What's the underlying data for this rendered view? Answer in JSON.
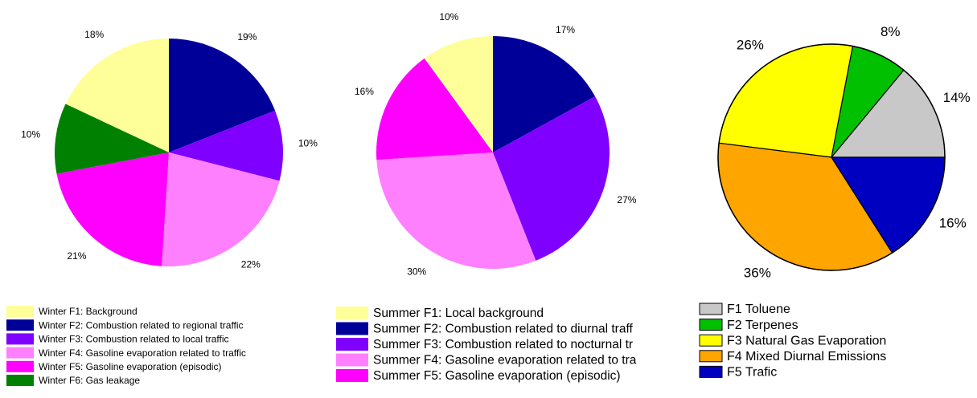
{
  "chart_data": [
    {
      "type": "pie",
      "categories": [
        "Winter F1: Background",
        "Winter F2: Combustion related to regional traffic",
        "Winter F3: Combustion related to local traffic",
        "Winter F4: Gasoline evaporation related to traffic",
        "Winter F5: Gasoline evaporation (episodic)",
        "Winter F6: Gas leakage"
      ],
      "values": [
        18,
        19,
        10,
        22,
        21,
        10
      ],
      "value_labels": [
        "18%",
        "19%",
        "10%",
        "22%",
        "21%",
        "10%"
      ],
      "colors": [
        "#ffff99",
        "#000099",
        "#8000ff",
        "#ff80ff",
        "#ff00ff",
        "#008000"
      ]
    },
    {
      "type": "pie",
      "categories": [
        "Summer F1: Local background",
        "Summer F2: Combustion related to diurnal traff",
        "Summer F3: Combustion related to nocturnal tr",
        "Summer F4: Gasoline evaporation related to tra",
        "Summer F5: Gasoline evaporation (episodic)"
      ],
      "values": [
        10,
        17,
        27,
        30,
        16
      ],
      "value_labels": [
        "10%",
        "17%",
        "27%",
        "30%",
        "16%"
      ],
      "colors": [
        "#ffff99",
        "#000099",
        "#8000ff",
        "#ff80ff",
        "#ff00ff"
      ]
    },
    {
      "type": "pie",
      "categories": [
        "F1 Toluene",
        "F2 Terpenes",
        "F3 Natural Gas Evaporation",
        "F4 Mixed Diurnal Emissions",
        "F5 Trafic"
      ],
      "values": [
        14,
        8,
        26,
        36,
        16
      ],
      "value_labels": [
        "14%",
        "8%",
        "26%",
        "36%",
        "16%"
      ],
      "colors": [
        "#c8c8c8",
        "#00c000",
        "#ffff00",
        "#ffa500",
        "#0000c0"
      ]
    }
  ]
}
